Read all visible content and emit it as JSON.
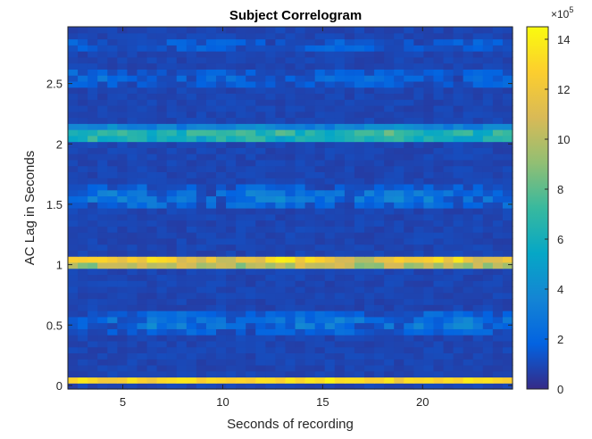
{
  "chart_data": {
    "type": "heatmap",
    "title": "Subject Correlogram",
    "xlabel": "Seconds of recording",
    "ylabel": "AC Lag in Seconds",
    "xlim": [
      2.25,
      24.5
    ],
    "ylim": [
      -0.03,
      2.97
    ],
    "x_ticks": [
      "5",
      "10",
      "15",
      "20"
    ],
    "x_tick_values": [
      5,
      10,
      15,
      20
    ],
    "y_ticks": [
      "0",
      "0.5",
      "1",
      "1.5",
      "2",
      "2.5"
    ],
    "y_tick_values": [
      0,
      0.5,
      1,
      1.5,
      2,
      2.5
    ],
    "colorbar": {
      "min": 0,
      "max": 14.5,
      "ticks": [
        "0",
        "2",
        "4",
        "6",
        "8",
        "10",
        "12",
        "14"
      ],
      "tick_values": [
        0,
        2,
        4,
        6,
        8,
        10,
        12,
        14
      ],
      "exponent_base": "×10",
      "exponent_power": "5"
    },
    "colormap": "parula",
    "bands": [
      {
        "lag": 0.04,
        "half_width": 0.04,
        "base_value": 13.2,
        "variation": 0.8
      },
      {
        "lag": 0.52,
        "half_width": 0.09,
        "base_value": 2.6,
        "variation": 1.4
      },
      {
        "lag": 1.03,
        "half_width": 0.06,
        "base_value": 12.4,
        "variation": 1.6
      },
      {
        "lag": 1.56,
        "half_width": 0.1,
        "base_value": 2.4,
        "variation": 1.4
      },
      {
        "lag": 2.08,
        "half_width": 0.07,
        "base_value": 6.8,
        "variation": 1.4
      },
      {
        "lag": 2.55,
        "half_width": 0.08,
        "base_value": 1.7,
        "variation": 1.1
      },
      {
        "lag": 2.82,
        "half_width": 0.06,
        "base_value": 1.4,
        "variation": 0.9
      }
    ],
    "background_value": 0.6,
    "grid": false
  }
}
